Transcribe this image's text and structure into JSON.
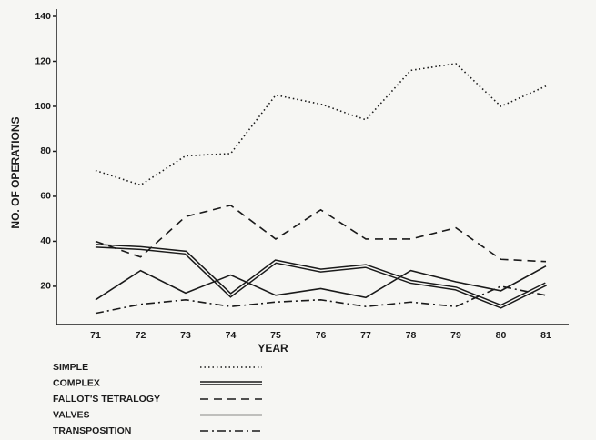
{
  "chart_data": {
    "type": "line",
    "xlabel": "YEAR",
    "ylabel": "NO. OF OPERATIONS",
    "categories": [
      "71",
      "72",
      "73",
      "74",
      "75",
      "76",
      "77",
      "78",
      "79",
      "80",
      "81"
    ],
    "ylim": [
      3,
      140
    ],
    "yticks": [
      20,
      40,
      60,
      80,
      100,
      120,
      140
    ],
    "legend": "below",
    "series": [
      {
        "name": "SIMPLE",
        "color": "#1a1a1a",
        "style": "dotted",
        "values": [
          71.5,
          65,
          78,
          79,
          105,
          101,
          94,
          116,
          119,
          100,
          109
        ]
      },
      {
        "name": "COMPLEX",
        "color": "#1a1a1a",
        "style": "double",
        "values": [
          38,
          37,
          35,
          16,
          31,
          27,
          29,
          22,
          19,
          11,
          21
        ]
      },
      {
        "name": "FALLOT'S TETRALOGY",
        "color": "#1a1a1a",
        "style": "dashed",
        "values": [
          40,
          33,
          51,
          56,
          41,
          54,
          41,
          41,
          46,
          32,
          31
        ]
      },
      {
        "name": "VALVES",
        "color": "#1a1a1a",
        "style": "solid",
        "values": [
          14,
          27,
          17,
          25,
          16,
          19,
          15,
          27,
          22,
          18,
          29
        ]
      },
      {
        "name": "TRANSPOSITION",
        "color": "#1a1a1a",
        "style": "dashdot",
        "values": [
          8,
          12,
          14,
          11,
          13,
          14,
          11,
          13,
          11,
          20,
          16
        ]
      }
    ]
  }
}
